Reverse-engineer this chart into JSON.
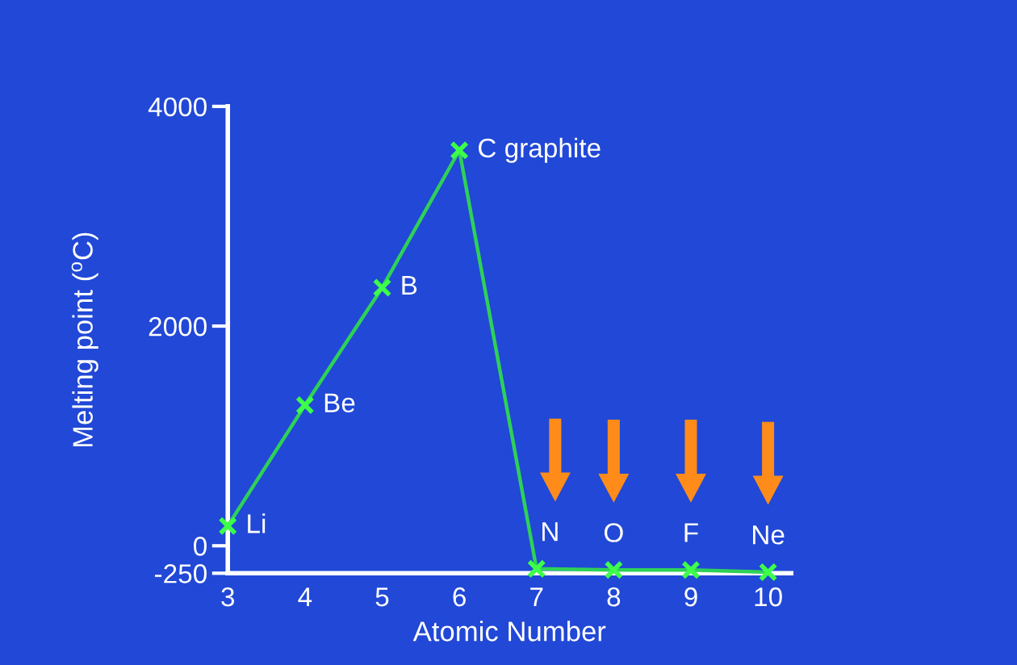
{
  "chart_data": {
    "type": "line",
    "xlabel": "Atomic Number",
    "ylabel": "Melting point ($^{o}$C)",
    "x": [
      3,
      4,
      5,
      6,
      7,
      8,
      9,
      10
    ],
    "series": [
      {
        "color": "#2ed158",
        "values": [
          180,
          1280,
          2350,
          3600,
          -210,
          -220,
          -220,
          -240
        ]
      }
    ],
    "xlim": [
      3,
      10.3
    ],
    "xticks": [
      3,
      4,
      5,
      6,
      7,
      8,
      9,
      10
    ],
    "ylim": [
      -250,
      4000
    ],
    "yticks": [
      -250,
      0,
      2000,
      4000
    ],
    "marker": "cross",
    "line_style": "solid",
    "annotations": [
      {
        "text": "Li",
        "x": 3,
        "y": 180
      },
      {
        "text": "Be",
        "x": 4,
        "y": 1280
      },
      {
        "text": "B",
        "x": 5,
        "y": 2350
      },
      {
        "text": "C graphite",
        "x": 6,
        "y": 3600
      },
      {
        "text": "N",
        "x": 7,
        "y": -210
      },
      {
        "text": "O",
        "x": 8,
        "y": -220
      },
      {
        "text": "F",
        "x": 9,
        "y": -220
      },
      {
        "text": "Ne",
        "x": 10,
        "y": -240
      }
    ]
  }
}
